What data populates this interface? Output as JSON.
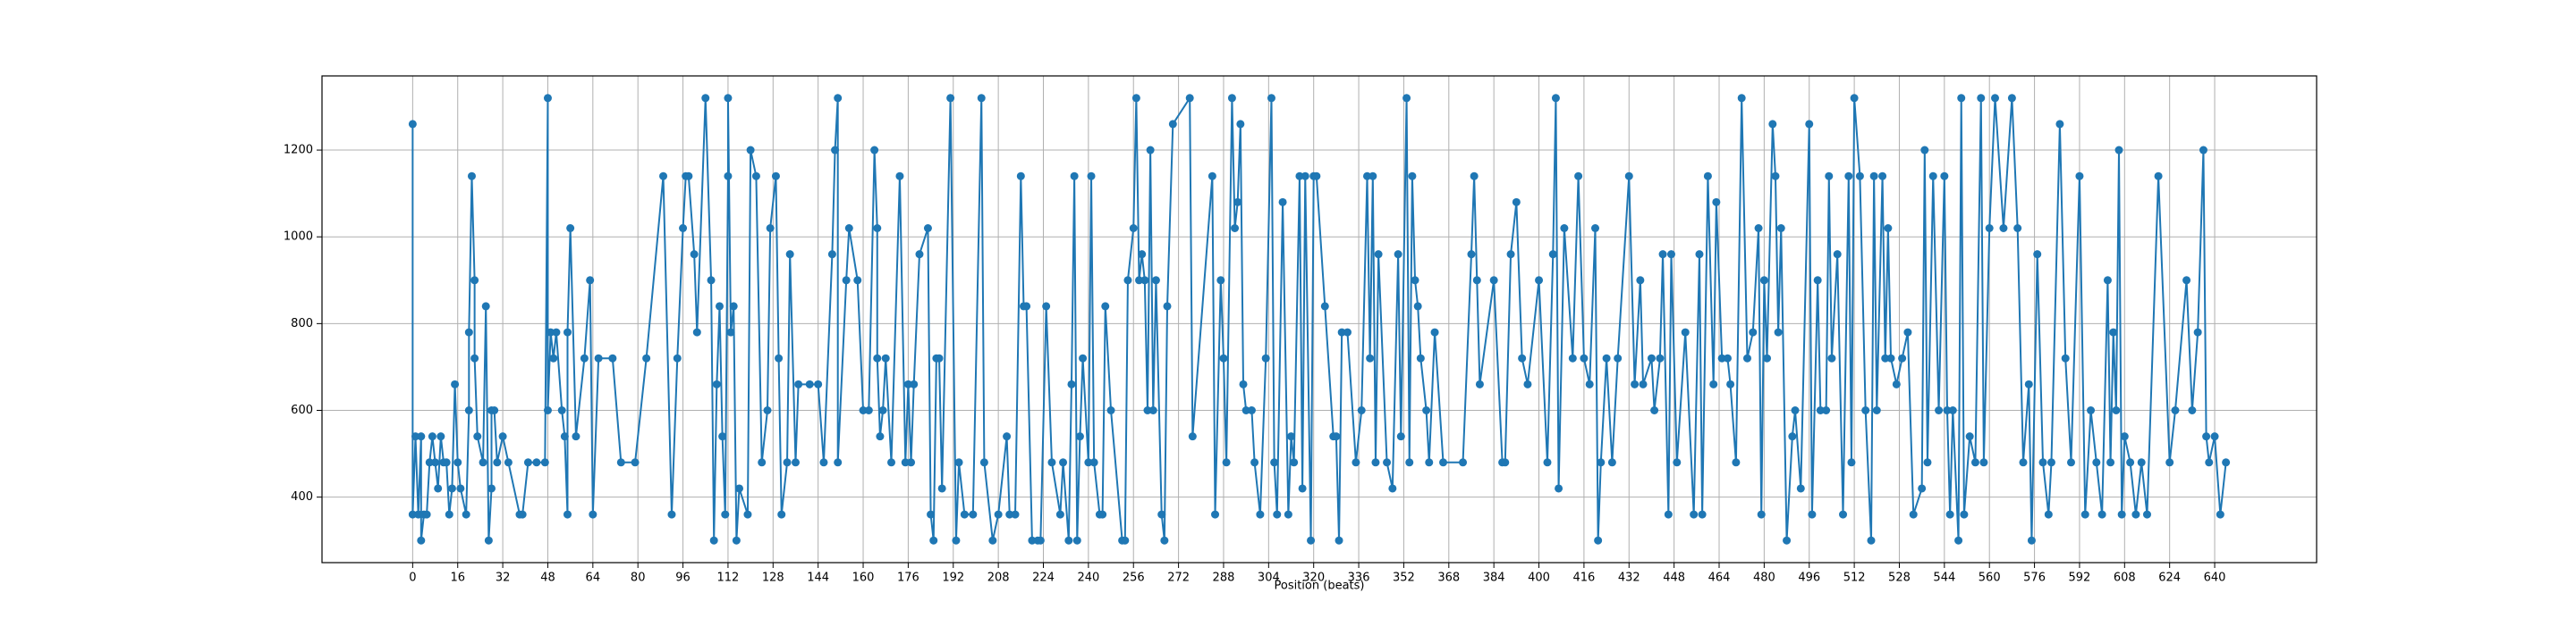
{
  "chart_data": {
    "type": "line",
    "x_label": "Position (beats)",
    "color": "#1f77b4",
    "marker": "o",
    "grid": true,
    "xlim": [
      -32.2,
      676.2
    ],
    "ylim": [
      249,
      1371
    ],
    "xticks": [
      0,
      16,
      32,
      48,
      64,
      80,
      96,
      112,
      128,
      144,
      160,
      176,
      192,
      208,
      224,
      240,
      256,
      272,
      288,
      304,
      320,
      336,
      352,
      368,
      384,
      400,
      416,
      432,
      448,
      464,
      480,
      496,
      512,
      528,
      544,
      560,
      576,
      592,
      608,
      624,
      640
    ],
    "yticks": [
      400,
      600,
      800,
      1000,
      1200
    ],
    "x": [
      0,
      0,
      1,
      2,
      3,
      3,
      4,
      5,
      6,
      7,
      8,
      9,
      10,
      11,
      12,
      13,
      14,
      15,
      16,
      17,
      19,
      20,
      20,
      21,
      22,
      22,
      23,
      25,
      26,
      27,
      28,
      28,
      29,
      30,
      32,
      34,
      38,
      39,
      41,
      44,
      47,
      48,
      48,
      49,
      50,
      51,
      53,
      54,
      55,
      55,
      56,
      58,
      61,
      63,
      64,
      66,
      71,
      74,
      79,
      83,
      89,
      92,
      94,
      96,
      97,
      98,
      100,
      101,
      104,
      106,
      107,
      108,
      109,
      110,
      111,
      112,
      112,
      113,
      114,
      115,
      116,
      119,
      120,
      122,
      124,
      126,
      127,
      129,
      130,
      131,
      133,
      134,
      136,
      137,
      141,
      144,
      146,
      149,
      150,
      151,
      151,
      154,
      155,
      158,
      160,
      162,
      164,
      165,
      165,
      166,
      167,
      168,
      170,
      173,
      175,
      176,
      177,
      178,
      180,
      183,
      184,
      185,
      186,
      187,
      188,
      191,
      193,
      194,
      196,
      199,
      202,
      203,
      206,
      208,
      211,
      212,
      214,
      216,
      217,
      218,
      220,
      222,
      223,
      225,
      227,
      230,
      231,
      233,
      234,
      235,
      236,
      237,
      238,
      240,
      241,
      242,
      244,
      245,
      246,
      248,
      252,
      253,
      254,
      256,
      257,
      258,
      259,
      260,
      261,
      262,
      263,
      264,
      266,
      267,
      268,
      270,
      276,
      277,
      284,
      285,
      287,
      288,
      289,
      291,
      292,
      293,
      294,
      295,
      296,
      298,
      299,
      301,
      303,
      305,
      306,
      307,
      309,
      311,
      312,
      313,
      315,
      316,
      317,
      319,
      320,
      321,
      324,
      327,
      328,
      329,
      330,
      332,
      335,
      337,
      339,
      340,
      341,
      342,
      343,
      346,
      348,
      350,
      351,
      353,
      354,
      355,
      356,
      357,
      358,
      360,
      361,
      363,
      366,
      373,
      376,
      377,
      378,
      379,
      384,
      387,
      388,
      390,
      392,
      394,
      396,
      400,
      403,
      405,
      406,
      407,
      409,
      412,
      414,
      416,
      418,
      420,
      421,
      422,
      424,
      426,
      428,
      432,
      434,
      436,
      437,
      440,
      441,
      443,
      444,
      446,
      447,
      449,
      452,
      455,
      457,
      458,
      460,
      462,
      463,
      465,
      467,
      468,
      470,
      472,
      474,
      476,
      478,
      479,
      480,
      481,
      483,
      484,
      485,
      486,
      488,
      490,
      491,
      493,
      496,
      497,
      499,
      500,
      502,
      503,
      504,
      506,
      508,
      510,
      511,
      512,
      514,
      516,
      518,
      519,
      520,
      522,
      523,
      524,
      525,
      527,
      529,
      531,
      533,
      536,
      537,
      538,
      540,
      542,
      544,
      545,
      546,
      547,
      549,
      550,
      551,
      553,
      555,
      557,
      558,
      560,
      562,
      565,
      568,
      570,
      572,
      574,
      575,
      577,
      579,
      581,
      582,
      585,
      587,
      589,
      592,
      594,
      596,
      598,
      600,
      602,
      603,
      604,
      605,
      606,
      607,
      608,
      610,
      612,
      614,
      616,
      620,
      624,
      626,
      630,
      632,
      634,
      636,
      637,
      638,
      640,
      642,
      644
    ],
    "values": [
      1260,
      360,
      540,
      360,
      540,
      300,
      360,
      360,
      480,
      540,
      480,
      420,
      540,
      480,
      480,
      360,
      420,
      660,
      480,
      420,
      360,
      600,
      780,
      1140,
      900,
      720,
      540,
      480,
      840,
      300,
      420,
      600,
      600,
      480,
      540,
      480,
      360,
      360,
      480,
      480,
      480,
      1320,
      600,
      780,
      720,
      780,
      600,
      540,
      360,
      780,
      1020,
      540,
      720,
      900,
      360,
      720,
      720,
      480,
      480,
      720,
      1140,
      360,
      720,
      1020,
      1140,
      1140,
      960,
      780,
      1320,
      900,
      300,
      660,
      840,
      540,
      360,
      1140,
      1320,
      780,
      840,
      300,
      420,
      360,
      1200,
      1140,
      480,
      600,
      1020,
      1140,
      720,
      360,
      480,
      960,
      480,
      660,
      660,
      660,
      480,
      960,
      1200,
      1320,
      480,
      900,
      1020,
      900,
      600,
      600,
      1200,
      1020,
      720,
      540,
      600,
      720,
      480,
      1140,
      480,
      660,
      480,
      660,
      960,
      1020,
      360,
      300,
      720,
      720,
      420,
      1320,
      300,
      480,
      360,
      360,
      1320,
      480,
      300,
      360,
      540,
      360,
      360,
      1140,
      840,
      840,
      300,
      300,
      300,
      840,
      480,
      360,
      480,
      300,
      660,
      1140,
      300,
      540,
      720,
      480,
      1140,
      480,
      360,
      360,
      840,
      600,
      300,
      300,
      900,
      1020,
      1320,
      900,
      960,
      900,
      600,
      1200,
      600,
      900,
      360,
      300,
      840,
      1260,
      1320,
      540,
      1140,
      360,
      900,
      720,
      480,
      1320,
      1020,
      1080,
      1260,
      660,
      600,
      600,
      480,
      360,
      720,
      1320,
      480,
      360,
      1080,
      360,
      540,
      480,
      1140,
      420,
      1140,
      300,
      1140,
      1140,
      840,
      540,
      540,
      300,
      780,
      780,
      480,
      600,
      1140,
      720,
      1140,
      480,
      960,
      480,
      420,
      960,
      540,
      1320,
      480,
      1140,
      900,
      840,
      720,
      600,
      480,
      780,
      480,
      480,
      960,
      1140,
      900,
      660,
      900,
      480,
      480,
      960,
      1080,
      720,
      660,
      900,
      480,
      960,
      1320,
      420,
      1020,
      720,
      1140,
      720,
      660,
      1020,
      300,
      480,
      720,
      480,
      720,
      1140,
      660,
      900,
      660,
      720,
      600,
      720,
      960,
      360,
      960,
      480,
      780,
      360,
      960,
      360,
      1140,
      660,
      1080,
      720,
      720,
      660,
      480,
      1320,
      720,
      780,
      1020,
      360,
      900,
      720,
      1260,
      1140,
      780,
      1020,
      300,
      540,
      600,
      420,
      1260,
      360,
      900,
      600,
      600,
      1140,
      720,
      960,
      360,
      1140,
      480,
      1320,
      1140,
      600,
      300,
      1140,
      600,
      1140,
      720,
      1020,
      720,
      660,
      720,
      780,
      360,
      420,
      1200,
      480,
      1140,
      600,
      1140,
      600,
      360,
      600,
      300,
      1320,
      360,
      540,
      480,
      1320,
      480,
      1020,
      1320,
      1020,
      1320,
      1020,
      480,
      660,
      300,
      960,
      480,
      360,
      480,
      1260,
      720,
      480,
      1140,
      360,
      600,
      480,
      360,
      900,
      480,
      780,
      600,
      1200,
      360,
      540,
      480,
      360,
      480,
      360,
      1140,
      480,
      600,
      900,
      600,
      780,
      1200,
      540,
      480,
      540,
      360,
      480
    ]
  }
}
